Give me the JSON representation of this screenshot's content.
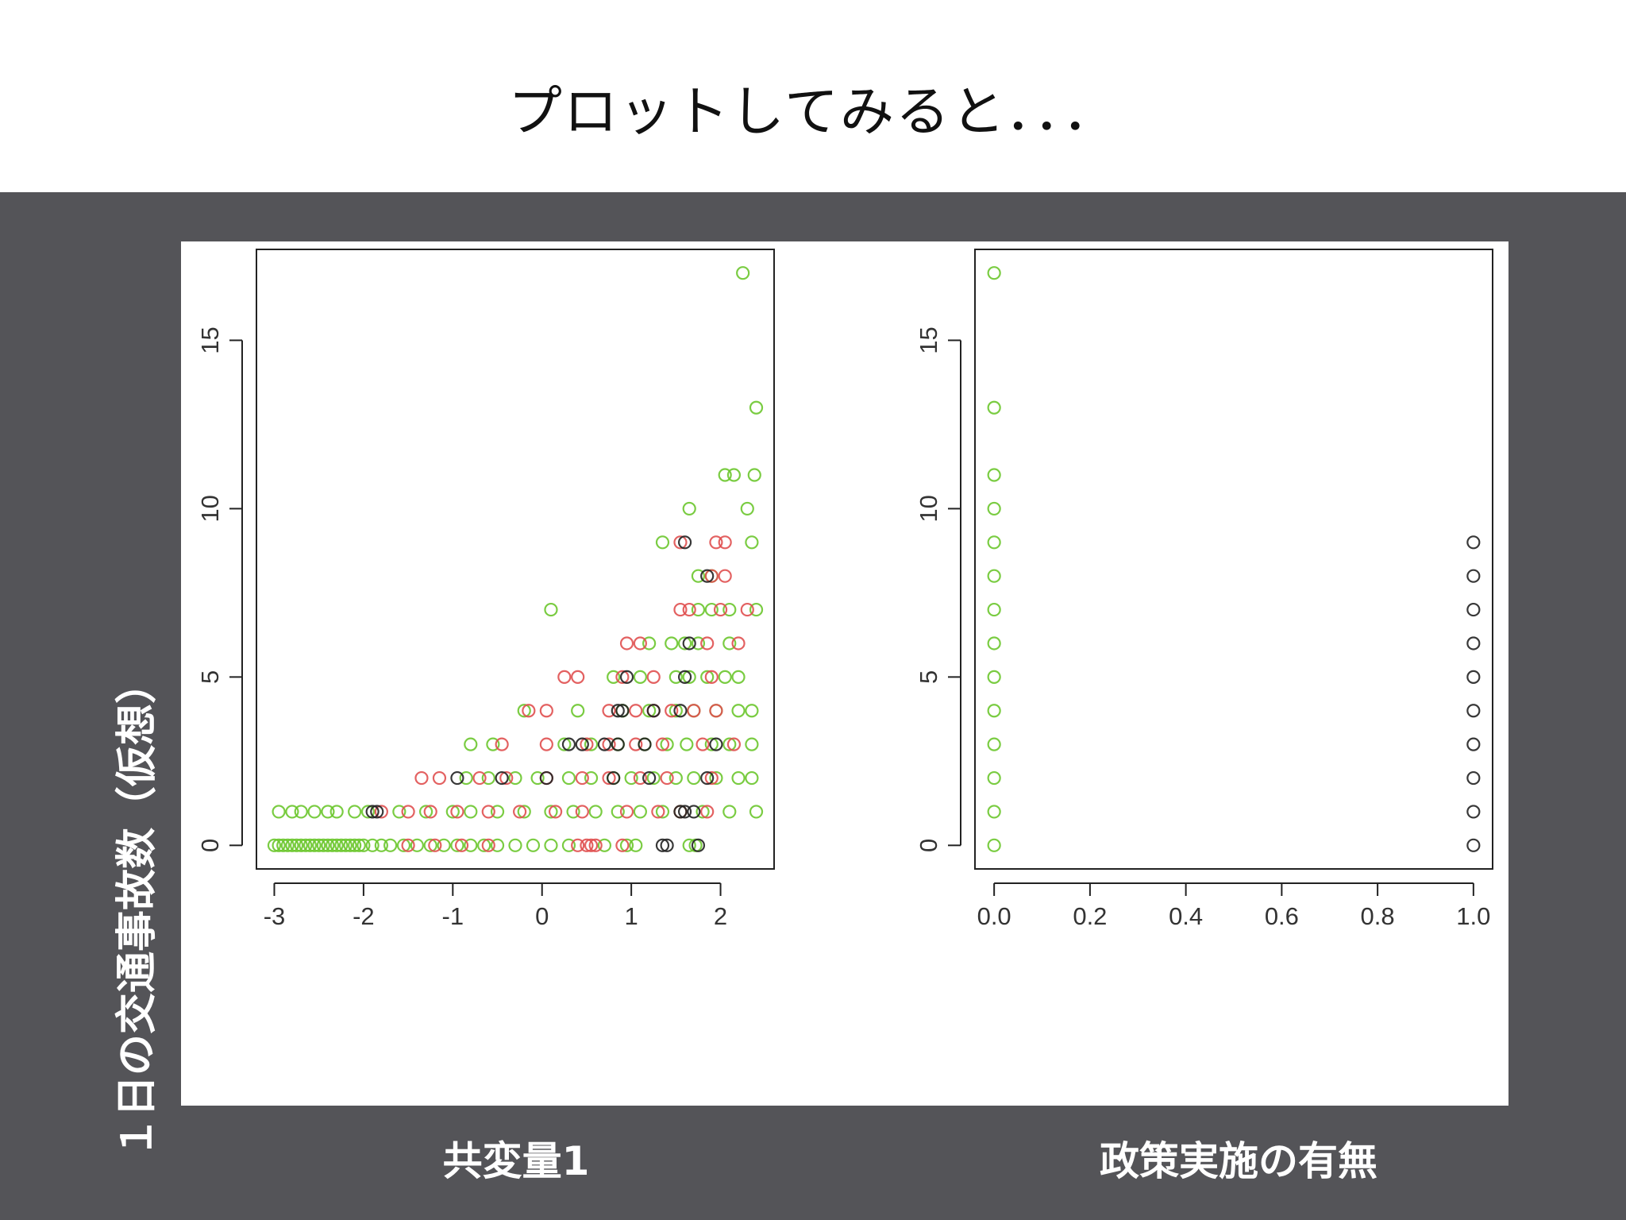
{
  "slide": {
    "title": "プロットしてみると．．．",
    "y_axis_label": "１日の交通事故数（仮想）",
    "x_axis_label_left": "共変量1",
    "x_axis_label_right": "政策実施の有無"
  },
  "colors": {
    "background": "#545458",
    "green": "#6cc62e",
    "red": "#e05050",
    "black": "#222222"
  },
  "chart_data": [
    {
      "type": "scatter",
      "xlabel": "共変量1",
      "ylabel": "１日の交通事故数（仮想）",
      "xlim": [
        -3.2,
        2.6
      ],
      "ylim": [
        -0.7,
        17.7
      ],
      "xticks": [
        "-3",
        "-2",
        "-1",
        "0",
        "1",
        "2"
      ],
      "yticks": [
        "0",
        "5",
        "10",
        "15"
      ],
      "grid": false,
      "marker": "open-circle",
      "series": [
        {
          "color": "green",
          "points": [
            [
              -3.0,
              0
            ],
            [
              -2.95,
              0
            ],
            [
              -2.9,
              0
            ],
            [
              -2.85,
              0
            ],
            [
              -2.8,
              0
            ],
            [
              -2.75,
              0
            ],
            [
              -2.7,
              0
            ],
            [
              -2.65,
              0
            ],
            [
              -2.6,
              0
            ],
            [
              -2.55,
              0
            ],
            [
              -2.5,
              0
            ],
            [
              -2.45,
              0
            ],
            [
              -2.4,
              0
            ],
            [
              -2.35,
              0
            ],
            [
              -2.3,
              0
            ],
            [
              -2.25,
              0
            ],
            [
              -2.2,
              0
            ],
            [
              -2.15,
              0
            ],
            [
              -2.1,
              0
            ],
            [
              -2.05,
              0
            ],
            [
              -2.0,
              0
            ],
            [
              -1.9,
              0
            ],
            [
              -1.8,
              0
            ],
            [
              -1.7,
              0
            ],
            [
              -1.55,
              0
            ],
            [
              -1.4,
              0
            ],
            [
              -1.25,
              0
            ],
            [
              -1.1,
              0
            ],
            [
              -0.95,
              0
            ],
            [
              -0.8,
              0
            ],
            [
              -0.65,
              0
            ],
            [
              -0.5,
              0
            ],
            [
              -0.3,
              0
            ],
            [
              -0.1,
              0
            ],
            [
              0.1,
              0
            ],
            [
              0.3,
              0
            ],
            [
              0.7,
              0
            ],
            [
              0.95,
              0
            ],
            [
              1.05,
              0
            ],
            [
              1.65,
              0
            ],
            [
              1.72,
              0
            ],
            [
              -2.95,
              1
            ],
            [
              -2.8,
              1
            ],
            [
              -2.7,
              1
            ],
            [
              -2.55,
              1
            ],
            [
              -2.4,
              1
            ],
            [
              -2.3,
              1
            ],
            [
              -2.1,
              1
            ],
            [
              -1.95,
              1
            ],
            [
              -1.6,
              1
            ],
            [
              -1.3,
              1
            ],
            [
              -1.0,
              1
            ],
            [
              -0.8,
              1
            ],
            [
              -0.5,
              1
            ],
            [
              -0.2,
              1
            ],
            [
              0.1,
              1
            ],
            [
              0.35,
              1
            ],
            [
              0.6,
              1
            ],
            [
              0.85,
              1
            ],
            [
              1.1,
              1
            ],
            [
              1.35,
              1
            ],
            [
              1.55,
              1
            ],
            [
              1.8,
              1
            ],
            [
              2.1,
              1
            ],
            [
              2.4,
              1
            ],
            [
              -0.85,
              2
            ],
            [
              -0.6,
              2
            ],
            [
              -0.3,
              2
            ],
            [
              -0.05,
              2
            ],
            [
              0.3,
              2
            ],
            [
              0.55,
              2
            ],
            [
              0.8,
              2
            ],
            [
              1.0,
              2
            ],
            [
              1.25,
              2
            ],
            [
              1.5,
              2
            ],
            [
              1.7,
              2
            ],
            [
              1.95,
              2
            ],
            [
              2.2,
              2
            ],
            [
              2.35,
              2
            ],
            [
              -0.8,
              3
            ],
            [
              -0.55,
              3
            ],
            [
              0.25,
              3
            ],
            [
              0.55,
              3
            ],
            [
              0.85,
              3
            ],
            [
              1.15,
              3
            ],
            [
              1.4,
              3
            ],
            [
              1.62,
              3
            ],
            [
              1.9,
              3
            ],
            [
              2.1,
              3
            ],
            [
              2.35,
              3
            ],
            [
              -0.2,
              4
            ],
            [
              0.4,
              4
            ],
            [
              0.9,
              4
            ],
            [
              1.2,
              4
            ],
            [
              1.5,
              4
            ],
            [
              1.7,
              4
            ],
            [
              1.95,
              4
            ],
            [
              2.2,
              4
            ],
            [
              2.35,
              4
            ],
            [
              0.8,
              5
            ],
            [
              1.1,
              5
            ],
            [
              1.5,
              5
            ],
            [
              1.65,
              5
            ],
            [
              1.85,
              5
            ],
            [
              2.05,
              5
            ],
            [
              2.2,
              5
            ],
            [
              1.2,
              6
            ],
            [
              1.45,
              6
            ],
            [
              1.6,
              6
            ],
            [
              1.75,
              6
            ],
            [
              2.1,
              6
            ],
            [
              0.1,
              7
            ],
            [
              1.75,
              7
            ],
            [
              1.9,
              7
            ],
            [
              2.1,
              7
            ],
            [
              2.4,
              7
            ],
            [
              1.75,
              8
            ],
            [
              1.9,
              8
            ],
            [
              1.35,
              9
            ],
            [
              2.35,
              9
            ],
            [
              1.65,
              10
            ],
            [
              2.3,
              10
            ],
            [
              2.05,
              11
            ],
            [
              2.15,
              11
            ],
            [
              2.38,
              11
            ],
            [
              2.4,
              13
            ],
            [
              2.25,
              17
            ]
          ]
        },
        {
          "color": "red",
          "points": [
            [
              -1.5,
              0
            ],
            [
              -1.2,
              0
            ],
            [
              -0.9,
              0
            ],
            [
              -0.6,
              0
            ],
            [
              0.4,
              0
            ],
            [
              0.5,
              0
            ],
            [
              0.55,
              0
            ],
            [
              0.6,
              0
            ],
            [
              0.9,
              0
            ],
            [
              -1.8,
              1
            ],
            [
              -1.5,
              1
            ],
            [
              -1.25,
              1
            ],
            [
              -0.95,
              1
            ],
            [
              -0.6,
              1
            ],
            [
              -0.25,
              1
            ],
            [
              0.15,
              1
            ],
            [
              0.45,
              1
            ],
            [
              0.95,
              1
            ],
            [
              1.3,
              1
            ],
            [
              1.55,
              1
            ],
            [
              1.85,
              1
            ],
            [
              -1.35,
              2
            ],
            [
              -1.15,
              2
            ],
            [
              -0.7,
              2
            ],
            [
              -0.4,
              2
            ],
            [
              0.05,
              2
            ],
            [
              0.45,
              2
            ],
            [
              0.75,
              2
            ],
            [
              1.1,
              2
            ],
            [
              1.4,
              2
            ],
            [
              1.9,
              2
            ],
            [
              -0.45,
              3
            ],
            [
              0.05,
              3
            ],
            [
              0.5,
              3
            ],
            [
              0.75,
              3
            ],
            [
              1.05,
              3
            ],
            [
              1.35,
              3
            ],
            [
              1.8,
              3
            ],
            [
              2.15,
              3
            ],
            [
              -0.15,
              4
            ],
            [
              0.05,
              4
            ],
            [
              0.75,
              4
            ],
            [
              1.05,
              4
            ],
            [
              1.25,
              4
            ],
            [
              1.45,
              4
            ],
            [
              1.7,
              4
            ],
            [
              1.95,
              4
            ],
            [
              0.25,
              5
            ],
            [
              0.4,
              5
            ],
            [
              0.9,
              5
            ],
            [
              1.25,
              5
            ],
            [
              1.9,
              5
            ],
            [
              0.95,
              6
            ],
            [
              1.1,
              6
            ],
            [
              1.85,
              6
            ],
            [
              2.2,
              6
            ],
            [
              1.55,
              7
            ],
            [
              1.65,
              7
            ],
            [
              2.0,
              7
            ],
            [
              2.3,
              7
            ],
            [
              1.9,
              8
            ],
            [
              2.05,
              8
            ],
            [
              1.55,
              9
            ],
            [
              1.95,
              9
            ],
            [
              2.05,
              9
            ]
          ]
        },
        {
          "color": "black",
          "points": [
            [
              1.35,
              0
            ],
            [
              1.4,
              0
            ],
            [
              1.75,
              0
            ],
            [
              -1.9,
              1
            ],
            [
              -1.85,
              1
            ],
            [
              1.55,
              1
            ],
            [
              1.6,
              1
            ],
            [
              1.7,
              1
            ],
            [
              -0.95,
              2
            ],
            [
              -0.45,
              2
            ],
            [
              0.05,
              2
            ],
            [
              0.8,
              2
            ],
            [
              1.2,
              2
            ],
            [
              1.85,
              2
            ],
            [
              0.3,
              3
            ],
            [
              0.45,
              3
            ],
            [
              0.7,
              3
            ],
            [
              0.85,
              3
            ],
            [
              1.15,
              3
            ],
            [
              1.95,
              3
            ],
            [
              0.9,
              4
            ],
            [
              0.85,
              4
            ],
            [
              1.55,
              4
            ],
            [
              1.25,
              4
            ],
            [
              0.95,
              5
            ],
            [
              1.6,
              5
            ],
            [
              1.65,
              6
            ],
            [
              1.85,
              8
            ],
            [
              1.6,
              9
            ]
          ]
        }
      ]
    },
    {
      "type": "scatter",
      "xlabel": "政策実施の有無",
      "ylabel": "１日の交通事故数（仮想）",
      "xlim": [
        -0.04,
        1.04
      ],
      "ylim": [
        -0.7,
        17.7
      ],
      "xticks": [
        "0.0",
        "0.2",
        "0.4",
        "0.6",
        "0.8",
        "1.0"
      ],
      "yticks": [
        "0",
        "5",
        "10",
        "15"
      ],
      "grid": false,
      "marker": "open-circle",
      "series": [
        {
          "color": "green",
          "points": [
            [
              0,
              0
            ],
            [
              0,
              1
            ],
            [
              0,
              2
            ],
            [
              0,
              3
            ],
            [
              0,
              4
            ],
            [
              0,
              5
            ],
            [
              0,
              6
            ],
            [
              0,
              7
            ],
            [
              0,
              8
            ],
            [
              0,
              9
            ],
            [
              0,
              10
            ],
            [
              0,
              11
            ],
            [
              0,
              13
            ],
            [
              0,
              17
            ]
          ]
        },
        {
          "color": "black",
          "points": [
            [
              1,
              0
            ],
            [
              1,
              1
            ],
            [
              1,
              2
            ],
            [
              1,
              3
            ],
            [
              1,
              4
            ],
            [
              1,
              5
            ],
            [
              1,
              6
            ],
            [
              1,
              7
            ],
            [
              1,
              8
            ],
            [
              1,
              9
            ]
          ]
        }
      ]
    }
  ]
}
